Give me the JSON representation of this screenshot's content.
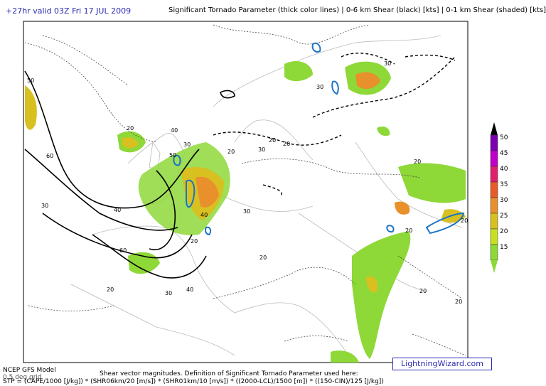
{
  "header": {
    "valid_time": "+27hr valid 03Z Fri 17 JUL 2009",
    "description": "Significant Tornado Parameter (thick color lines) | 0-6 km Shear (black) [kts] | 0-1 km Shear (shaded) [kts]"
  },
  "map": {
    "contour_labels": [
      50,
      40,
      60,
      30,
      20,
      40,
      50,
      30,
      20,
      30,
      20,
      60,
      30,
      40,
      20,
      30,
      20,
      30,
      40,
      20,
      20,
      20,
      30,
      20,
      20,
      20,
      20
    ]
  },
  "legend": {
    "levels": [
      50,
      45,
      40,
      35,
      30,
      25,
      20,
      15
    ],
    "colors": [
      "#7a00b0",
      "#c000c8",
      "#e0206a",
      "#e85a28",
      "#e8902c",
      "#d8c020",
      "#c8e020",
      "#8ed838"
    ]
  },
  "footer": {
    "model": "NCEP GFS Model",
    "grid": "0.5 deg grid",
    "definition": "Shear vector magnitudes. Definition of Significant Tornado Parameter used here:",
    "formula": "STP = (CAPE/1000 [J/kg]) * (SHR06km/20 [m/s]) * (SHR01km/10 [m/s]) * ((2000-LCL)/1500 [m]) * ((150-CIN)/125 [J/kg])",
    "logo": "LightningWizard.com"
  }
}
